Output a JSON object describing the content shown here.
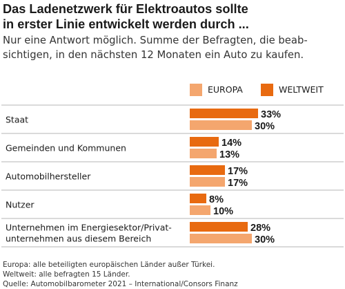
{
  "header": {
    "title_line1": "Das Ladenetzwerk für Elektroautos sollte",
    "title_line2": "in erster Linie entwickelt werden durch ...",
    "subtitle_line1": "Nur eine Antwort möglich. Summe der Befragten, die beab-",
    "subtitle_line2": "sichtigen, in den nächsten 12 Monaten ein Auto zu kaufen."
  },
  "colors": {
    "europa": "#f4a66e",
    "weltweit": "#e86a10",
    "divider": "#b5b5b5"
  },
  "chart_data": {
    "type": "bar",
    "orientation": "horizontal",
    "categories": [
      [
        "Staat"
      ],
      [
        "Gemeinden und Kommunen"
      ],
      [
        "Automobilhersteller"
      ],
      [
        "Nutzer"
      ],
      [
        "Unternehmen im Energiesektor/Privat-",
        "unternehmen aus diesem Bereich"
      ]
    ],
    "series": [
      {
        "name": "WELTWEIT",
        "values": [
          33,
          14,
          17,
          8,
          28
        ]
      },
      {
        "name": "EUROPA",
        "values": [
          30,
          13,
          17,
          10,
          30
        ]
      }
    ],
    "value_suffix": "%",
    "legend": [
      "EUROPA",
      "WELTWEIT"
    ],
    "legend_position": "top-right",
    "grid": false
  },
  "footnotes": {
    "line1": "Europa: alle beteiligten europäischen Länder außer Türkei.",
    "line2": "Weltweit: alle befragten 15 Länder.",
    "line3": "Quelle: Automobilbarometer 2021 – International/Consors Finanz"
  }
}
